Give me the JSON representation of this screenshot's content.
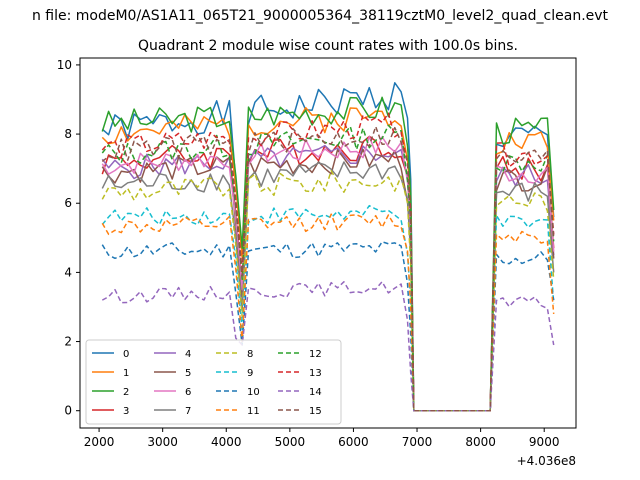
{
  "figure": {
    "suptitle": "n file: modeM0/AS1A11_065T21_9000005364_38119cztM0_level2_quad_clean.evt",
    "offset_label": "+4.036e8"
  },
  "chart_data": {
    "type": "line",
    "title": "Quadrant 2 module wise count rates with 100.0s bins.",
    "xlabel": "",
    "ylabel": "",
    "xlim": [
      1700,
      9500
    ],
    "ylim": [
      -0.5,
      10.2
    ],
    "x_offset_note": "+4.036e8",
    "xticks": [
      2000,
      3000,
      4000,
      5000,
      6000,
      7000,
      8000,
      9000
    ],
    "xtick_labels": [
      "2000",
      "3000",
      "4000",
      "5000",
      "6000",
      "7000",
      "8000",
      "9000"
    ],
    "yticks": [
      0,
      2,
      4,
      6,
      8,
      10
    ],
    "ytick_labels": [
      "0",
      "2",
      "4",
      "6",
      "8",
      "10"
    ],
    "grid": false,
    "legend_placement": "lower-left",
    "gap": {
      "x_start": 6950,
      "x_end": 8150,
      "value": 0
    },
    "segments": [
      [
        2050,
        6850
      ],
      [
        8250,
        9150
      ]
    ],
    "series": [
      {
        "name": "0",
        "color": "#1f77b4",
        "dash": "solid",
        "base": 8.1,
        "amp": 0.45,
        "drift": 1.1,
        "seed": 1
      },
      {
        "name": "1",
        "color": "#ff7f0e",
        "dash": "solid",
        "base": 8.0,
        "amp": 0.4,
        "drift": 0.6,
        "seed": 2
      },
      {
        "name": "2",
        "color": "#2ca02c",
        "dash": "solid",
        "base": 8.3,
        "amp": 0.4,
        "drift": 0.5,
        "seed": 3
      },
      {
        "name": "3",
        "color": "#d62728",
        "dash": "solid",
        "base": 7.2,
        "amp": 0.4,
        "drift": 0.5,
        "seed": 4
      },
      {
        "name": "4",
        "color": "#9467bd",
        "dash": "solid",
        "base": 7.0,
        "amp": 0.35,
        "drift": 0.5,
        "seed": 5
      },
      {
        "name": "5",
        "color": "#8c564b",
        "dash": "solid",
        "base": 6.9,
        "amp": 0.35,
        "drift": 0.4,
        "seed": 6
      },
      {
        "name": "6",
        "color": "#e377c2",
        "dash": "solid",
        "base": 7.1,
        "amp": 0.35,
        "drift": 0.6,
        "seed": 7
      },
      {
        "name": "7",
        "color": "#7f7f7f",
        "dash": "solid",
        "base": 6.5,
        "amp": 0.35,
        "drift": 0.5,
        "seed": 8
      },
      {
        "name": "8",
        "color": "#bcbd22",
        "dash": "dashed",
        "base": 6.3,
        "amp": 0.35,
        "drift": 0.4,
        "seed": 9
      },
      {
        "name": "9",
        "color": "#17becf",
        "dash": "dashed",
        "base": 5.6,
        "amp": 0.25,
        "drift": 0.1,
        "seed": 10
      },
      {
        "name": "10",
        "color": "#1f77b4",
        "dash": "dashed",
        "base": 4.6,
        "amp": 0.25,
        "drift": 0.1,
        "seed": 11
      },
      {
        "name": "11",
        "color": "#ff7f0e",
        "dash": "dashed",
        "base": 5.3,
        "amp": 0.25,
        "drift": 0.2,
        "seed": 12
      },
      {
        "name": "12",
        "color": "#2ca02c",
        "dash": "dashed",
        "base": 7.4,
        "amp": 0.35,
        "drift": 0.6,
        "seed": 13
      },
      {
        "name": "13",
        "color": "#d62728",
        "dash": "dashed",
        "base": 7.6,
        "amp": 0.35,
        "drift": 0.7,
        "seed": 14
      },
      {
        "name": "14",
        "color": "#9467bd",
        "dash": "dashed",
        "base": 3.3,
        "amp": 0.2,
        "drift": 0.3,
        "seed": 15
      },
      {
        "name": "15",
        "color": "#8c564b",
        "dash": "dashed",
        "base": 7.5,
        "amp": 0.35,
        "drift": 0.5,
        "seed": 16
      }
    ]
  }
}
